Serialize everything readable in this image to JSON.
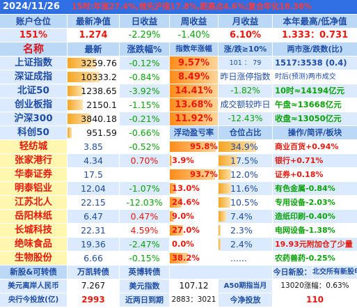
{
  "header": {
    "date": "2024/11/26",
    "headline": "15时:年涨27.4%,领先沪指17.8%,距高点4.6%;复合年化18.38%"
  },
  "account_header": {
    "labels": [
      "账户仓位",
      "最新净值",
      "日收益",
      "周收益",
      "月收益",
      "本年最高/低净值"
    ],
    "values": [
      "151%",
      "1.274",
      "-2.29%",
      "-1.40%",
      "6.10%",
      "1.333：0.731"
    ]
  },
  "index_header": {
    "labels": [
      "名称",
      "最新",
      "涨跌幅%",
      "指数年涨幅",
      "涨/跌≥10%",
      "两市涨/跌数(比)"
    ]
  },
  "indices": [
    {
      "name": "上证指数",
      "last": "3259.76",
      "change": "-0.12%",
      "year": "9.57%",
      "col5": "101 ： 79",
      "col6": "1517:3538 (0.4)",
      "bar": 0.55
    },
    {
      "name": "深证成指",
      "last": "10333.2",
      "change": "-0.84%",
      "year": "8.49%",
      "col5": "昨日涨停指数",
      "col6": "时后(预测)两市成交",
      "bar": 0.62
    },
    {
      "name": "北证50",
      "last": "1238.65",
      "change": "-3.92%",
      "year": "14.41%",
      "col5": "-1.82%",
      "col6": "10时≈14194亿元",
      "bar": 0.3
    },
    {
      "name": "创业板指",
      "last": "2150.1",
      "change": "-1.15%",
      "year": "13.68%",
      "col5": "成交额较昨日",
      "col6": "午盘≈13668亿元",
      "bar": 0.3
    },
    {
      "name": "沪深300",
      "last": "3840.18",
      "change": "-0.21%",
      "year": "11.92%",
      "col5": "-12.43%",
      "col6": "收盘≈13050亿元",
      "bar": 0.45
    },
    {
      "name": "科创50",
      "last": "951.59",
      "change": "-0.66%",
      "year": "",
      "col5": "",
      "col6": "",
      "bar": 0.08
    }
  ],
  "holdings_header": {
    "labels": [
      "浮动盈亏率",
      "仓位占比",
      "操作/简评/板块"
    ]
  },
  "holdings": [
    {
      "name": "轻纺城",
      "price": "3.85",
      "change": "-0.52%",
      "pnl": "95.8%",
      "pnl_frac": 0.96,
      "weight": "34.9%",
      "weight_frac": 0.35,
      "note": "商业百货+0.94%"
    },
    {
      "name": "张家港行",
      "price": "4.34",
      "change": "0.70%",
      "pnl": "3.9%",
      "pnl_frac": 0.04,
      "weight": "17.5%",
      "weight_frac": 0.18,
      "note": "银行+0.71%"
    },
    {
      "name": "华泰证券",
      "price": "17.5",
      "change": "",
      "pnl": "93.7%",
      "pnl_frac": 0.94,
      "weight": "12.0%",
      "weight_frac": 0.12,
      "note": "证券+0.18%"
    },
    {
      "name": "明泰铝业",
      "price": "12.04",
      "change": "-1.07%",
      "pnl": "13.0%",
      "pnl_frac": 0.13,
      "weight": "11.6%",
      "weight_frac": 0.12,
      "note": "有色金属-0.84%"
    },
    {
      "name": "江苏北人",
      "price": "22.15",
      "change": "-12.03%",
      "pnl": "24.6%",
      "pnl_frac": 0.25,
      "weight": "10.5%",
      "weight_frac": 0.11,
      "note": "专用设备-2.03%"
    },
    {
      "name": "岳阳林纸",
      "price": "6.47",
      "change": "0.47%",
      "pnl": "9.0%",
      "pnl_frac": 0.09,
      "weight": "7.4%",
      "weight_frac": 0.07,
      "note": "造纸印刷-0.40%"
    },
    {
      "name": "长城科技",
      "price": "22.31",
      "change": "4.59%",
      "pnl": "27.0%",
      "pnl_frac": 0.27,
      "weight": "2.3%",
      "weight_frac": 0.02,
      "note": "电网设备-1.38%"
    },
    {
      "name": "绝味食品",
      "price": "19.36",
      "change": "-2.47%",
      "pnl": "0.0%",
      "pnl_frac": 0.0,
      "weight": "2.4%",
      "weight_frac": 0.02,
      "note": "19.93元附加仓了少量"
    },
    {
      "name": "生物股份",
      "price": "6.66",
      "change": "-0.15%",
      "pnl": "38.2%",
      "pnl_frac": 0.38,
      "weight": "......",
      "weight_frac": 0.0,
      "note": "农药兽药-0.25%"
    }
  ],
  "bottom1": {
    "a": "新股&可转债",
    "b": "万凯转债",
    "c": "英博转债",
    "d": "",
    "e": "今日新股：",
    "f": "北交所有新股申购"
  },
  "bottom2": {
    "a": "美元离岸人民币",
    "b": "7.267",
    "c": "美元指数",
    "d": "107.12",
    "e": "A50期指当月",
    "f": "13020涨幅：0.63%"
  },
  "bottom3": {
    "a": "央行今投放(亿)",
    "b": "2993",
    "c": "近两日到期",
    "d": "2883：3021",
    "e": "今净投放",
    "f": "110"
  },
  "colors": {
    "accent_blue": "#2f6fe3",
    "header_bg": "#bcd8f7",
    "up_red": "#e8190e",
    "down_green": "#0aa30a",
    "orange_hl": "#ff8c1a",
    "yellow_hl": "#fff6b0"
  }
}
